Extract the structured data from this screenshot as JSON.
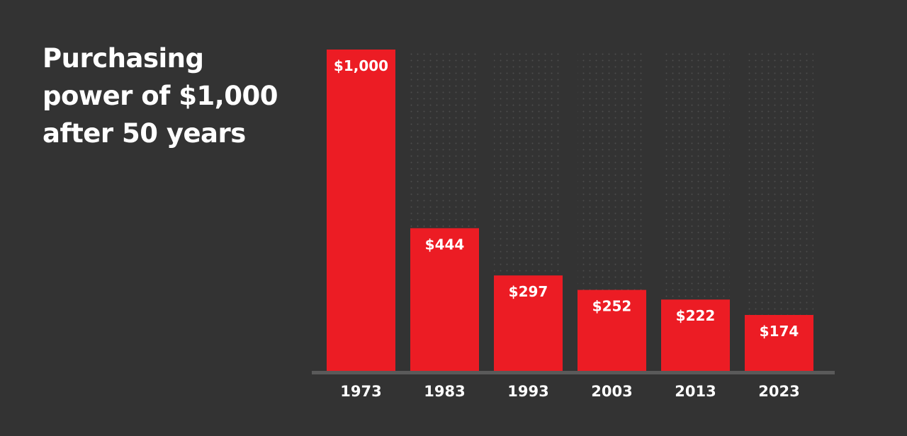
{
  "chart_data": {
    "type": "bar",
    "title": "Purchasing power of $1,000 after 50 years",
    "categories": [
      "1973",
      "1983",
      "1993",
      "2003",
      "2013",
      "2023"
    ],
    "values": [
      1000,
      444,
      297,
      252,
      222,
      174
    ],
    "value_labels": [
      "$1,000",
      "$444",
      "$297",
      "$252",
      "$222",
      "$174"
    ],
    "color": "#ec1c24",
    "ylim": [
      0,
      1000
    ]
  }
}
